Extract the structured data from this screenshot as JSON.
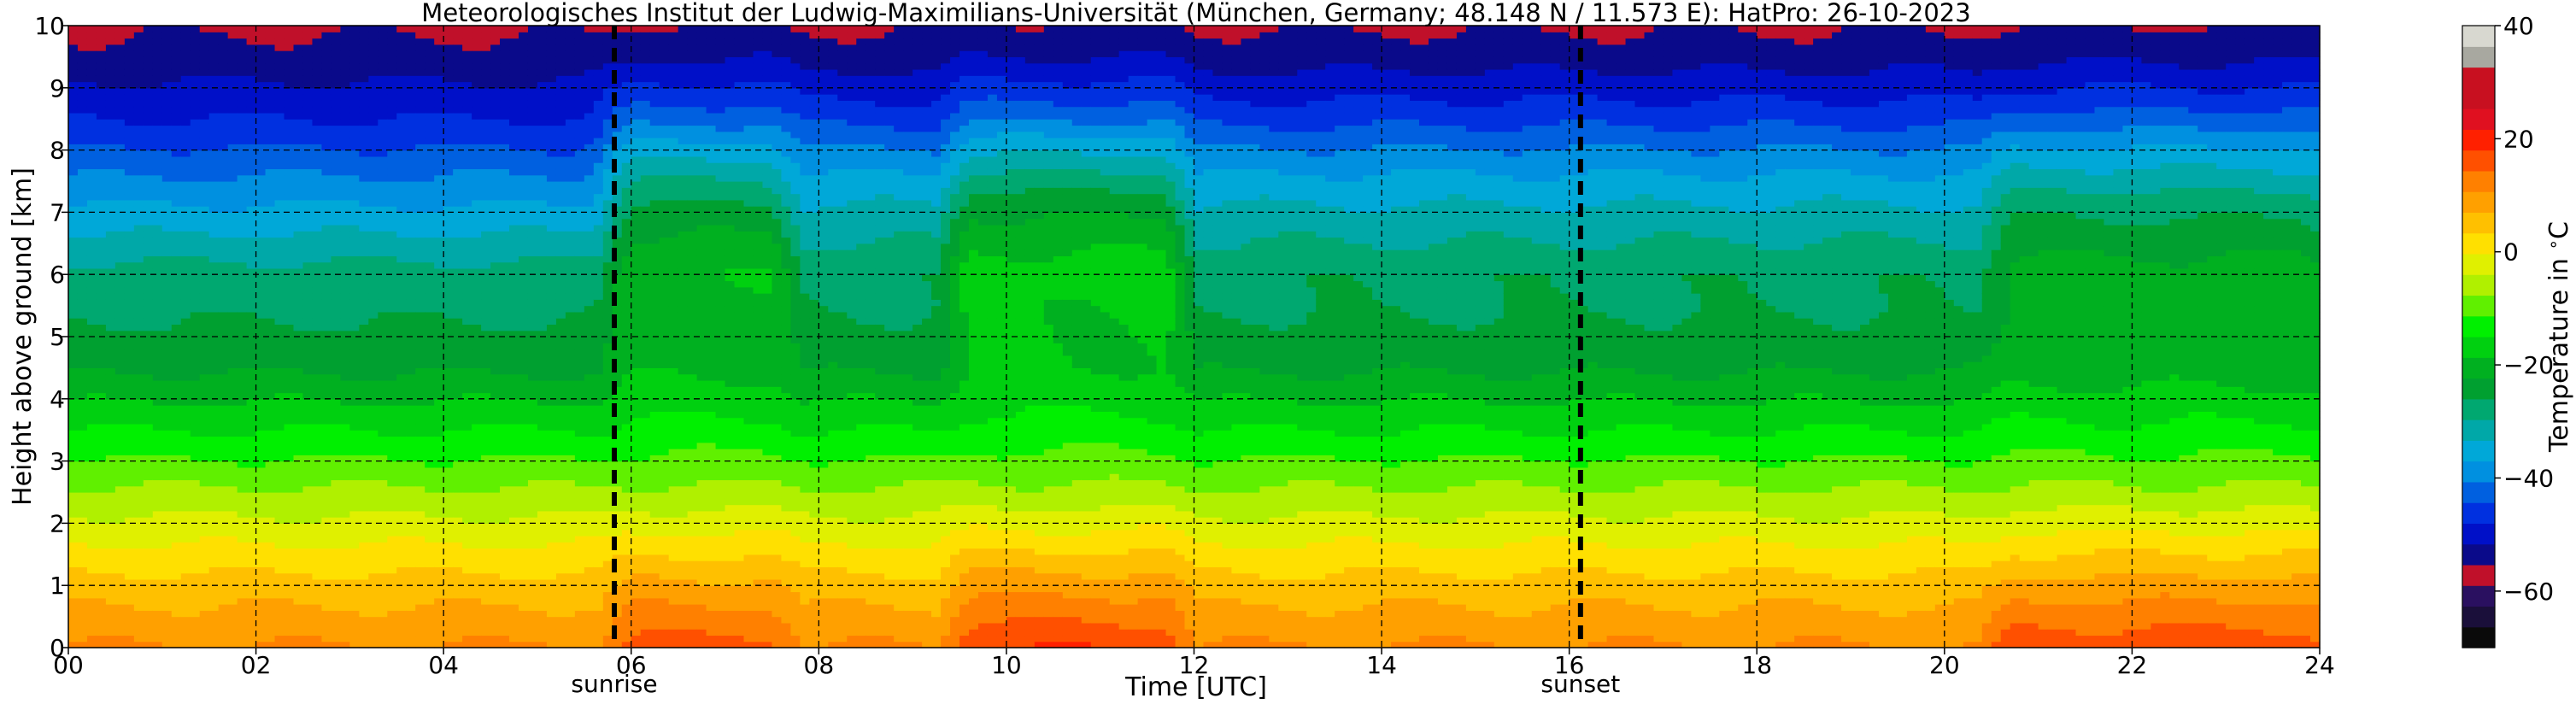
{
  "chart_data": {
    "type": "heatmap",
    "title": "Meteorologisches Institut der Ludwig-Maximilians-Universität (München, Germany; 48.148 N / 11.573 E):    HatPro: 26-10-2023",
    "xlabel": "Time [UTC]",
    "ylabel": "Height above ground [km]",
    "xlim": [
      0,
      24
    ],
    "ylim": [
      0,
      10
    ],
    "x_ticks": [
      0,
      2,
      4,
      6,
      8,
      10,
      12,
      14,
      16,
      18,
      20,
      22,
      24
    ],
    "x_tick_labels": [
      "00",
      "02",
      "04",
      "06",
      "08",
      "10",
      "12",
      "14",
      "16",
      "18",
      "20",
      "22",
      "24"
    ],
    "y_ticks": [
      0,
      1,
      2,
      3,
      4,
      5,
      6,
      7,
      8,
      9,
      10
    ],
    "y_tick_labels": [
      "0",
      "1",
      "2",
      "3",
      "4",
      "5",
      "6",
      "7",
      "8",
      "9",
      "10"
    ],
    "grid": true,
    "markers": [
      {
        "label": "sunrise",
        "x": 5.82
      },
      {
        "label": "sunset",
        "x": 16.12
      }
    ],
    "colorbar": {
      "label": "Temperature in $^\\circ$C",
      "range": [
        -70,
        40
      ],
      "ticks": [
        -60,
        -40,
        -20,
        0,
        20,
        40
      ],
      "tick_labels": [
        "−60",
        "−40",
        "−20",
        "0",
        "20",
        "40"
      ],
      "colors": [
        "#0a0a0a",
        "#1a0f3a",
        "#2a1060",
        "#c0102a",
        "#0a0a8a",
        "#0010c8",
        "#0030e0",
        "#0060e0",
        "#0090e0",
        "#00a8d8",
        "#00a8a8",
        "#00a870",
        "#00a030",
        "#00b020",
        "#00d010",
        "#00f000",
        "#60f000",
        "#b0f000",
        "#e0f000",
        "#ffe000",
        "#ffc000",
        "#ffa000",
        "#ff8000",
        "#ff5000",
        "#ff2000",
        "#e01020",
        "#c81020",
        "#c81020",
        "#a8a8a0",
        "#d8d8d0"
      ]
    },
    "profile_heights_km": [
      0,
      0.5,
      1,
      1.5,
      2,
      2.5,
      3,
      3.5,
      4,
      4.5,
      5,
      5.5,
      6,
      6.5,
      7,
      7.5,
      8,
      8.5,
      9,
      9.5,
      10
    ],
    "base_profile_C": [
      11,
      8,
      5,
      1,
      -3,
      -7,
      -11,
      -15,
      -19,
      -23,
      -25,
      -27,
      -28,
      -32,
      -36,
      -40,
      -44,
      -48,
      -51,
      -54,
      -56
    ],
    "warm_periods": [
      {
        "from": 6.0,
        "to": 7.5,
        "surface_delta_C": 5,
        "upper_delta_C": 8
      },
      {
        "from": 9.6,
        "to": 11.7,
        "surface_delta_C": 7,
        "upper_delta_C": 10
      },
      {
        "from": 20.7,
        "to": 23.9,
        "surface_delta_C": 6,
        "upper_delta_C": 6
      }
    ],
    "upper_warming_window": {
      "from": 5.8,
      "to": 24.0,
      "delta_C": 4
    }
  }
}
